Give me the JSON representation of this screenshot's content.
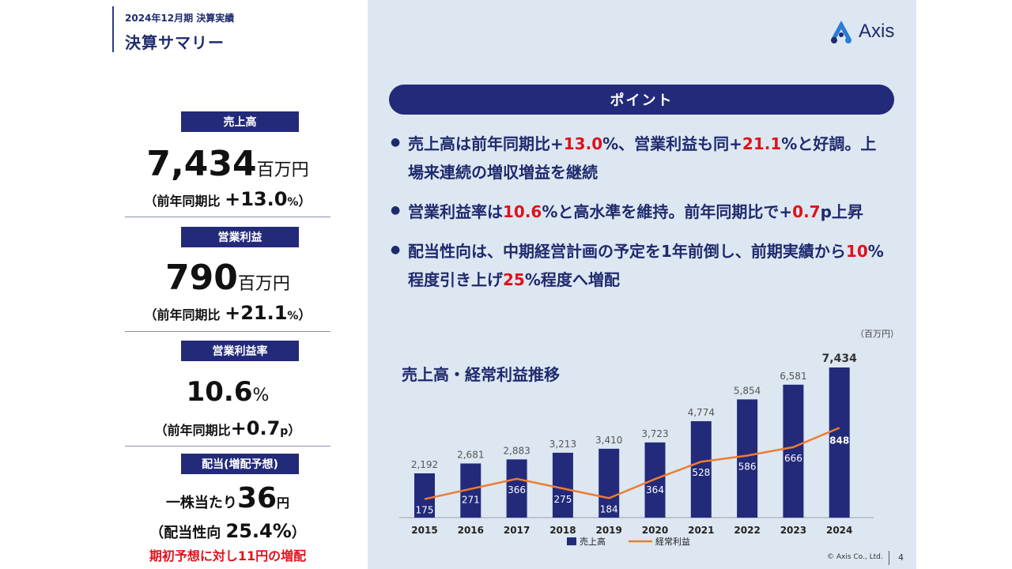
{
  "header": {
    "subtitle": "2024年12月期 決算実績",
    "title": "決算サマリー"
  },
  "logo": {
    "text": "Axis",
    "color": "#2b7bd6"
  },
  "kpis": {
    "sales": {
      "label": "売上高",
      "value": "7,434",
      "unit": "百万円",
      "yoy_prefix": "（前年同期比 ",
      "yoy_value": "+13.0",
      "yoy_pct": "%",
      "yoy_suffix": "）"
    },
    "op_income": {
      "label": "営業利益",
      "value": "790",
      "unit": "百万円",
      "yoy_prefix": "（前年同期比 ",
      "yoy_value": "+21.1",
      "yoy_pct": "%",
      "yoy_suffix": "）"
    },
    "op_margin": {
      "label": "営業利益率",
      "value": "10.6",
      "unit": "%",
      "yoy_prefix": "（前年同期比",
      "yoy_value": "+0.7",
      "yoy_pct": "p",
      "yoy_suffix": "）"
    },
    "dividend": {
      "label": "配当(増配予想)",
      "prefix": "一株当たり",
      "value": "36",
      "unit": "円",
      "payout_prefix": "（配当性向 ",
      "payout_value": "25.4%",
      "payout_suffix": "）",
      "note": "期初予想に対し11円の増配"
    }
  },
  "points": {
    "title": "ポイント",
    "bullets": [
      {
        "parts": [
          {
            "t": "売上高は前年同期比+"
          },
          {
            "t": "13.0",
            "red": true
          },
          {
            "t": "%、営業利益も同+"
          },
          {
            "t": "21.1",
            "red": true
          },
          {
            "t": "%と好調。上場来連続の増収増益を継続"
          }
        ]
      },
      {
        "parts": [
          {
            "t": "営業利益率は"
          },
          {
            "t": "10.6",
            "red": true
          },
          {
            "t": "%と高水準を維持。前年同期比で+"
          },
          {
            "t": "0.7",
            "red": true
          },
          {
            "t": "p上昇"
          }
        ]
      },
      {
        "parts": [
          {
            "t": "配当性向は、中期経営計画の予定を1年前倒し、前期実績から"
          },
          {
            "t": "10",
            "red": true
          },
          {
            "t": "%程度引き上げ"
          },
          {
            "t": "25",
            "red": true
          },
          {
            "t": "%程度へ増配"
          }
        ]
      }
    ]
  },
  "chart_data": {
    "type": "bar",
    "title": "売上高・経常利益推移",
    "unit_label": "（百万円）",
    "categories": [
      "2015",
      "2016",
      "2017",
      "2018",
      "2019",
      "2020",
      "2021",
      "2022",
      "2023",
      "2024"
    ],
    "series": [
      {
        "name": "売上高",
        "kind": "bar",
        "color": "#232a7a",
        "values": [
          2192,
          2681,
          2883,
          3213,
          3410,
          3723,
          4774,
          5854,
          6581,
          7434
        ]
      },
      {
        "name": "経常利益",
        "kind": "line",
        "color": "#ed7d31",
        "values": [
          175,
          271,
          366,
          275,
          184,
          364,
          528,
          586,
          666,
          848
        ]
      }
    ],
    "bar_labels": [
      "2,192",
      "2,681",
      "2,883",
      "3,213",
      "3,410",
      "3,723",
      "4,774",
      "5,854",
      "6,581",
      "7,434"
    ],
    "line_labels": [
      "175",
      "271",
      "366",
      "275",
      "184",
      "364",
      "528",
      "586",
      "666",
      "848"
    ],
    "legend": "bottom",
    "grid": false
  },
  "footer": {
    "copyright": "© Axis Co., Ltd.",
    "page": "4"
  }
}
